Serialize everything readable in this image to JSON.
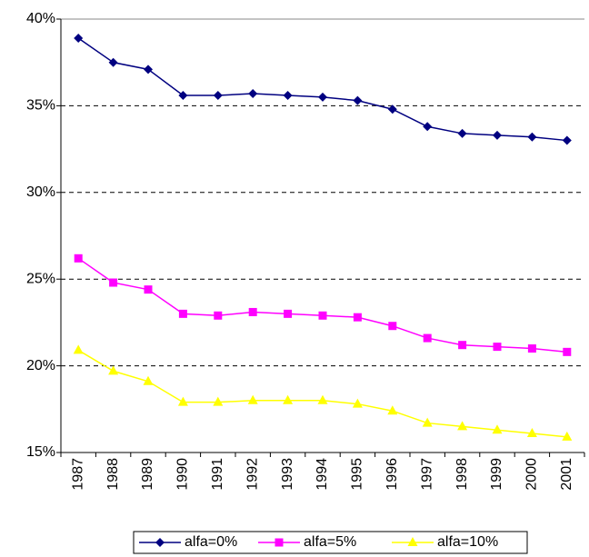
{
  "chart_data": {
    "type": "line",
    "categories": [
      "1987",
      "1988",
      "1989",
      "1990",
      "1991",
      "1992",
      "1993",
      "1994",
      "1995",
      "1996",
      "1997",
      "1998",
      "1999",
      "2000",
      "2001"
    ],
    "series": [
      {
        "name": "alfa=0%",
        "color": "#000080",
        "marker": "diamond",
        "values": [
          38.9,
          37.5,
          37.1,
          35.6,
          35.6,
          35.7,
          35.6,
          35.5,
          35.3,
          34.8,
          33.8,
          33.4,
          33.3,
          33.2,
          33.0
        ]
      },
      {
        "name": "alfa=5%",
        "color": "#ff00ff",
        "marker": "square",
        "values": [
          26.2,
          24.8,
          24.4,
          23.0,
          22.9,
          23.1,
          23.0,
          22.9,
          22.8,
          22.3,
          21.6,
          21.2,
          21.1,
          21.0,
          20.8
        ]
      },
      {
        "name": "alfa=10%",
        "color": "#ffff00",
        "marker": "triangle",
        "values": [
          20.9,
          19.7,
          19.1,
          17.9,
          17.9,
          18.0,
          18.0,
          18.0,
          17.8,
          17.4,
          16.7,
          16.5,
          16.3,
          16.1,
          15.9
        ]
      }
    ],
    "ylim": [
      15,
      40
    ],
    "yticks": [
      {
        "value": 15,
        "label": "15%"
      },
      {
        "value": 20,
        "label": "20%"
      },
      {
        "value": 25,
        "label": "25%"
      },
      {
        "value": 30,
        "label": "30%"
      },
      {
        "value": 35,
        "label": "35%"
      },
      {
        "value": 40,
        "label": "40%"
      }
    ],
    "grid": true,
    "legend": "bottom"
  }
}
